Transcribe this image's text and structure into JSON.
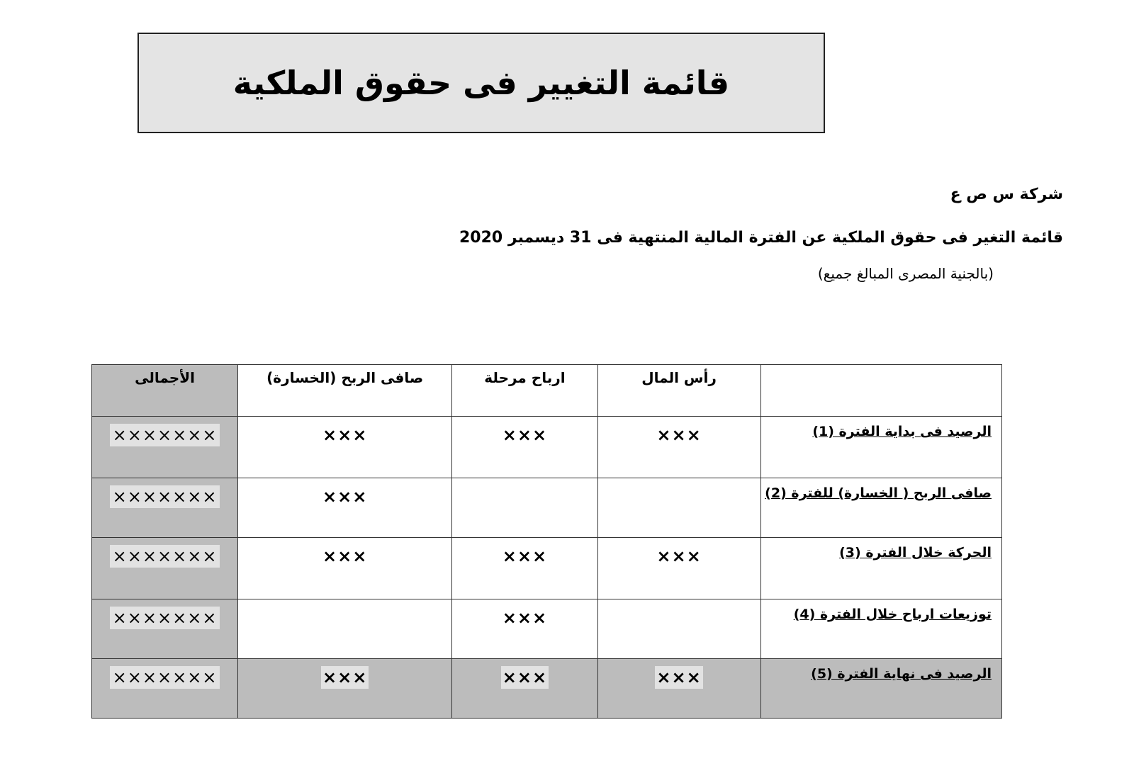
{
  "title": "قائمة التغيير فى حقوق الملكية",
  "company": "شركة س ص ع",
  "subtitle": "قائمة التغير فى حقوق الملكية عن الفترة  المالية المنتهية فى 31 ديسمبر 2020",
  "currency_note": "(بالجنية المصرى  المبالغ جميع)",
  "table": {
    "headers": [
      "",
      "رأس المال",
      "ارباح مرحلة",
      "صافى الربح (الخسارة)",
      "الأجمالى"
    ],
    "rows": [
      {
        "label": "الرصيد فى بداية الفترة   (1)",
        "capital": "×××",
        "retained": "×××",
        "net": "×××",
        "total": "×××××××"
      },
      {
        "label": "صافى الربح ( الخسارة) للفترة (2)",
        "capital": "",
        "retained": "",
        "net": "×××",
        "total": "×××××××"
      },
      {
        "label": "الحركة خلال الفترة   (3)",
        "capital": "×××",
        "retained": "×××",
        "net": "×××",
        "total": "×××××××"
      },
      {
        "label": "توزيعات ارباح خلال الفترة  (4)",
        "capital": "",
        "retained": "×××",
        "net": "",
        "total": "×××××××"
      },
      {
        "label": "الرصيد فى نهاية الفترة  (5)",
        "capital": "×××",
        "retained": "×××",
        "net": "×××",
        "total": "×××××××"
      }
    ]
  }
}
